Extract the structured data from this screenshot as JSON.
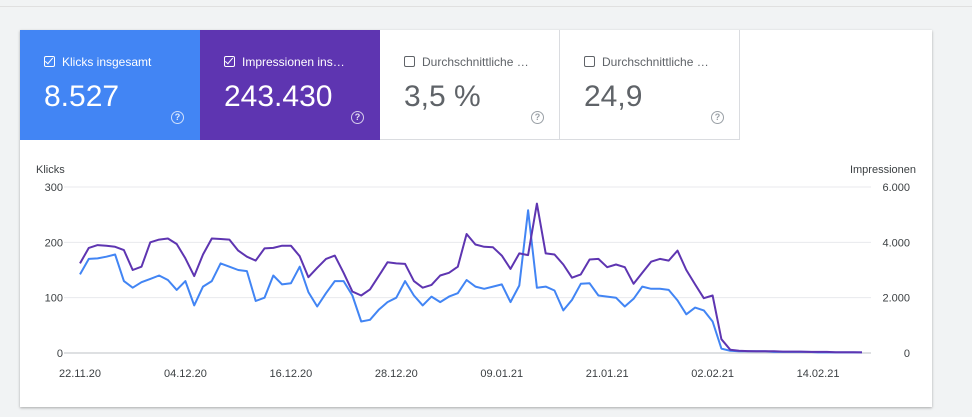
{
  "metrics": [
    {
      "label": "Klicks insgesamt",
      "value": "8.527",
      "checked": true,
      "color": "#4285f4",
      "help": "?"
    },
    {
      "label": "Impressionen ins…",
      "value": "243.430",
      "checked": true,
      "color": "#5e35b1",
      "help": "?"
    },
    {
      "label": "Durchschnittliche …",
      "value": "3,5 %",
      "checked": false,
      "color": "#ffffff",
      "help": "?"
    },
    {
      "label": "Durchschnittliche …",
      "value": "24,9",
      "checked": false,
      "color": "#ffffff",
      "help": "?"
    }
  ],
  "chart_data": {
    "type": "line",
    "ylabel": "Klicks",
    "y2label": "Impressionen",
    "yticks": [
      "0",
      "100",
      "200",
      "300"
    ],
    "y2ticks": [
      "0",
      "2.000",
      "4.000",
      "6.000"
    ],
    "ylim": [
      0,
      300
    ],
    "y2lim": [
      0,
      6000
    ],
    "xticks": [
      "22.11.20",
      "04.12.20",
      "16.12.20",
      "28.12.20",
      "09.01.21",
      "21.01.21",
      "02.02.21",
      "14.02.21"
    ],
    "xtick_index": [
      0,
      12,
      24,
      36,
      48,
      60,
      72,
      84
    ],
    "grid": true,
    "series": [
      {
        "name": "Klicks",
        "axis": "left",
        "color": "#4285f4",
        "values": [
          142,
          170,
          171,
          174,
          178,
          130,
          118,
          128,
          134,
          140,
          132,
          114,
          130,
          86,
          120,
          130,
          162,
          156,
          150,
          148,
          94,
          100,
          140,
          124,
          126,
          156,
          110,
          84,
          108,
          130,
          130,
          104,
          57,
          60,
          78,
          92,
          100,
          130,
          104,
          86,
          102,
          92,
          102,
          108,
          132,
          120,
          116,
          120,
          124,
          92,
          122,
          258,
          118,
          120,
          113,
          77,
          96,
          125,
          126,
          104,
          102,
          100,
          84,
          98,
          120,
          116,
          116,
          114,
          95,
          70,
          82,
          77,
          57,
          8,
          4,
          3,
          3,
          3,
          3,
          2,
          2,
          2,
          2,
          2,
          1,
          1,
          1,
          1,
          1,
          1
        ]
      },
      {
        "name": "Impressionen",
        "axis": "right",
        "color": "#5e35b1",
        "values": [
          3240,
          3800,
          3900,
          3880,
          3840,
          3720,
          3000,
          3120,
          4000,
          4100,
          4140,
          3940,
          3420,
          2780,
          3560,
          4140,
          4120,
          4100,
          3700,
          3480,
          3340,
          3780,
          3800,
          3880,
          3880,
          3500,
          2740,
          3080,
          3400,
          3520,
          2900,
          2220,
          2080,
          2300,
          2780,
          3280,
          3240,
          3220,
          2600,
          2360,
          2460,
          2800,
          2900,
          3120,
          4300,
          3920,
          3840,
          3820,
          3520,
          3040,
          3600,
          3540,
          5400,
          3600,
          3560,
          3200,
          2720,
          2840,
          3380,
          3400,
          3100,
          3200,
          3100,
          2500,
          2900,
          3300,
          3400,
          3340,
          3700,
          3000,
          2480,
          1980,
          2080,
          500,
          120,
          80,
          70,
          60,
          60,
          60,
          50,
          50,
          50,
          40,
          40,
          40,
          30,
          30,
          30,
          20
        ]
      }
    ]
  }
}
